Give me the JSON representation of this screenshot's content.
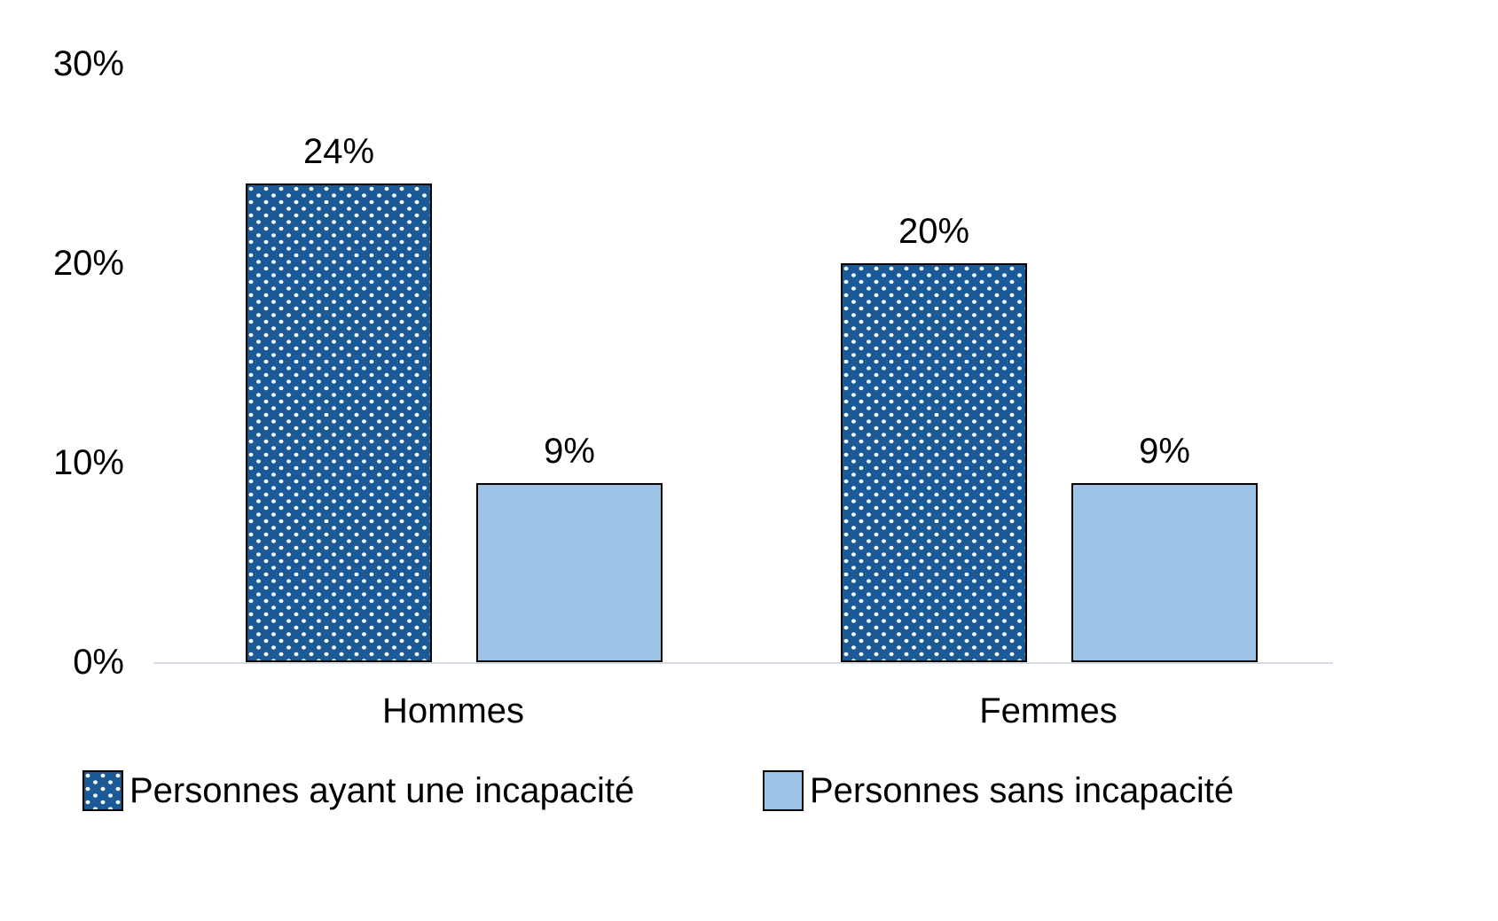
{
  "chart_data": {
    "type": "bar",
    "title": "",
    "xlabel": "",
    "ylabel": "",
    "categories": [
      "Hommes",
      "Femmes"
    ],
    "series": [
      {
        "name": "Personnes ayant une incapacité",
        "pattern": "dotted",
        "color": "#1A5A96",
        "values": [
          24,
          20
        ]
      },
      {
        "name": "Personnes sans incapacité",
        "pattern": "solid",
        "color": "#9DC3E6",
        "values": [
          9,
          9
        ]
      }
    ],
    "data_labels": [
      "24%",
      "9%",
      "20%",
      "9%"
    ],
    "ylim": [
      0,
      30
    ],
    "yticks": [
      {
        "value": 0,
        "label": "0%"
      },
      {
        "value": 10,
        "label": "10%"
      },
      {
        "value": 20,
        "label": "20%"
      },
      {
        "value": 30,
        "label": "30%"
      }
    ],
    "grid": false,
    "legend_position": "bottom",
    "value_suffix": "%"
  },
  "colors": {
    "series1": "#1A5A96",
    "series2": "#9DC3E6",
    "bar_border": "#000000",
    "axis_line": "#d6dde6",
    "text": "#000000",
    "background": "#ffffff"
  }
}
